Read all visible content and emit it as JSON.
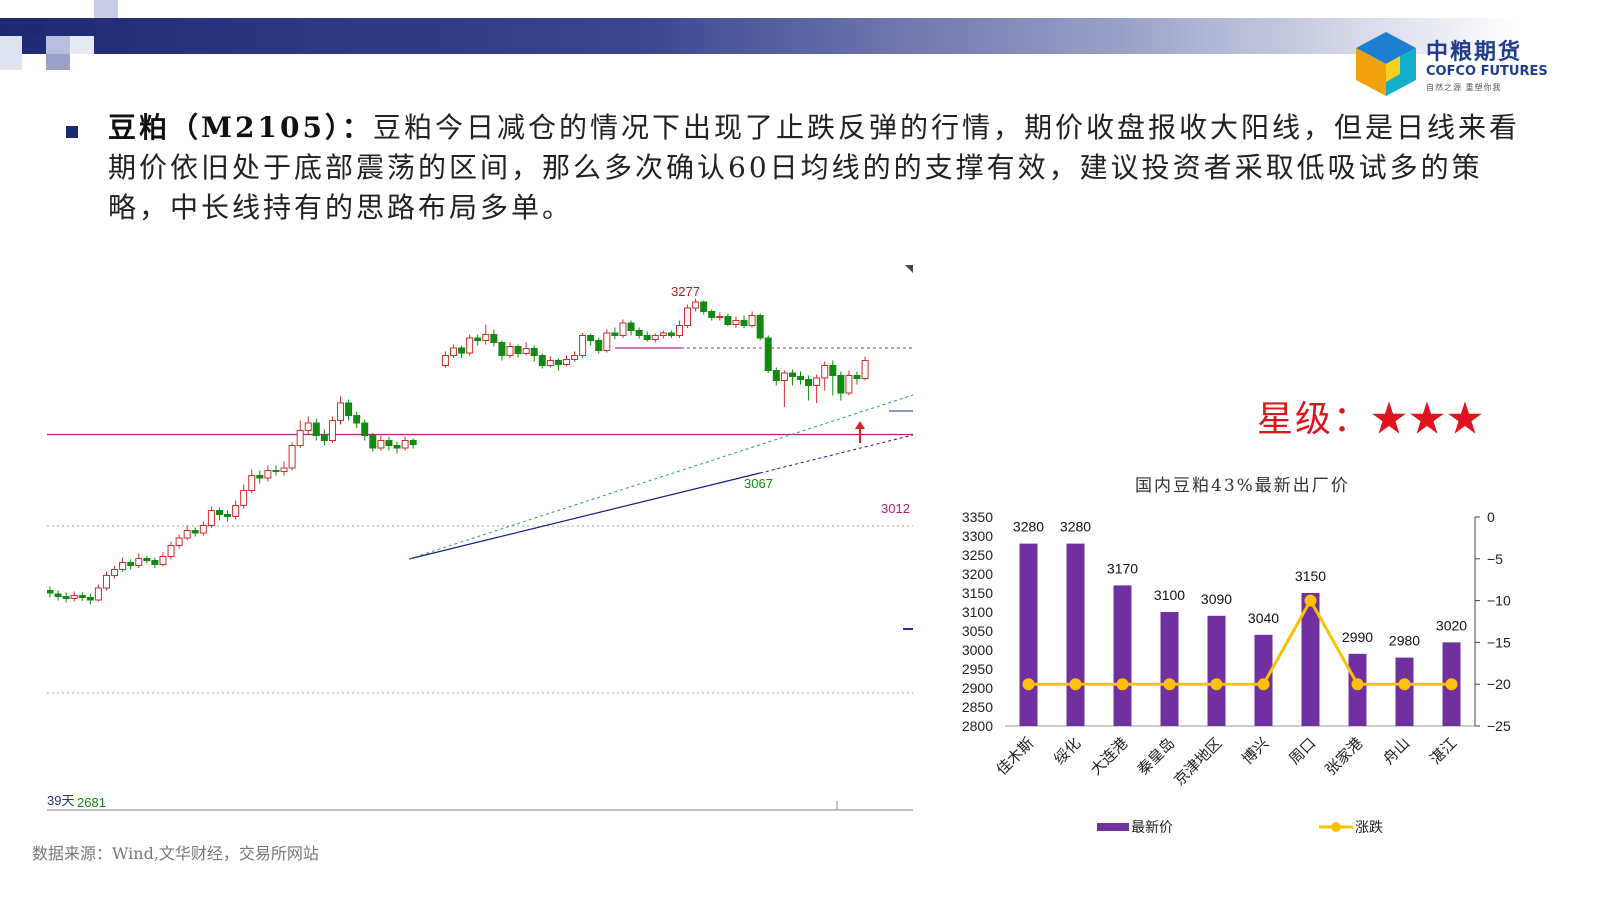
{
  "header": {
    "logo_cn": "中粮期货",
    "logo_en": "COFCO FUTURES",
    "logo_sub": "自然之源 重塑你我"
  },
  "commentary": {
    "lead": "豆粕（M2105）：",
    "body": "豆粕今日减仓的情况下出现了止跌反弹的行情，期价收盘报收大阳线，但是日线来看期价依旧处于底部震荡的区间，那么多次确认60日均线的的支撑有效，建议投资者采取低吸试多的策略，中长线持有的思路布局多单。"
  },
  "rating": {
    "label": "星级：",
    "stars": "★★★"
  },
  "source": "数据来源：Wind,文华财经，交易所网站",
  "colors": {
    "up": "#d62b2b",
    "down": "#108a10",
    "bar": "#7030a0",
    "line": "#ffc000",
    "hline": "#b0207a"
  },
  "chart_data": [
    {
      "type": "candlestick",
      "annotations": {
        "high_label": "3277",
        "low_label": "3067",
        "level_label": "3012",
        "start_label": "2681",
        "period_label": "39天"
      },
      "candles": [
        [
          2700,
          2695,
          2708,
          2686
        ],
        [
          2693,
          2688,
          2700,
          2680
        ],
        [
          2688,
          2684,
          2696,
          2676
        ],
        [
          2684,
          2690,
          2698,
          2678
        ],
        [
          2690,
          2686,
          2697,
          2679
        ],
        [
          2686,
          2681,
          2694,
          2672
        ],
        [
          2681,
          2705,
          2712,
          2678
        ],
        [
          2705,
          2730,
          2738,
          2700
        ],
        [
          2730,
          2742,
          2750,
          2724
        ],
        [
          2742,
          2756,
          2766,
          2737
        ],
        [
          2756,
          2750,
          2762,
          2742
        ],
        [
          2750,
          2764,
          2774,
          2745
        ],
        [
          2764,
          2760,
          2769,
          2754
        ],
        [
          2760,
          2752,
          2766,
          2745
        ],
        [
          2752,
          2768,
          2777,
          2748
        ],
        [
          2768,
          2790,
          2798,
          2762
        ],
        [
          2790,
          2805,
          2812,
          2784
        ],
        [
          2805,
          2820,
          2830,
          2800
        ],
        [
          2820,
          2815,
          2826,
          2808
        ],
        [
          2815,
          2830,
          2838,
          2810
        ],
        [
          2830,
          2860,
          2868,
          2825
        ],
        [
          2860,
          2852,
          2866,
          2840
        ],
        [
          2852,
          2848,
          2860,
          2838
        ],
        [
          2848,
          2870,
          2880,
          2842
        ],
        [
          2870,
          2900,
          2912,
          2864
        ],
        [
          2900,
          2930,
          2942,
          2895
        ],
        [
          2930,
          2925,
          2940,
          2914
        ],
        [
          2925,
          2940,
          2950,
          2918
        ],
        [
          2940,
          2938,
          2950,
          2930
        ],
        [
          2938,
          2945,
          2958,
          2930
        ],
        [
          2945,
          2990,
          2996,
          2940
        ],
        [
          2990,
          3020,
          3040,
          2985
        ],
        [
          3020,
          3035,
          3048,
          3012
        ],
        [
          3035,
          3010,
          3044,
          3000
        ],
        [
          3010,
          3000,
          3022,
          2990
        ],
        [
          3000,
          3040,
          3048,
          2995
        ],
        [
          3040,
          3075,
          3088,
          3032
        ],
        [
          3075,
          3050,
          3082,
          3040
        ],
        [
          3050,
          3035,
          3058,
          3025
        ],
        [
          3035,
          3010,
          3042,
          3000
        ],
        [
          3010,
          2985,
          3015,
          2978
        ],
        [
          2985,
          3000,
          3010,
          2980
        ],
        [
          3000,
          2990,
          3008,
          2980
        ],
        [
          2990,
          2985,
          2998,
          2974
        ],
        [
          2985,
          3000,
          3008,
          2980
        ],
        [
          3000,
          2992,
          3004,
          2984
        ],
        [
          3150,
          3170,
          3178,
          3145
        ],
        [
          3170,
          3185,
          3192,
          3165
        ],
        [
          3185,
          3175,
          3190,
          3165
        ],
        [
          3175,
          3205,
          3212,
          3170
        ],
        [
          3205,
          3200,
          3212,
          3190
        ],
        [
          3200,
          3212,
          3232,
          3192
        ],
        [
          3212,
          3196,
          3222,
          3188
        ],
        [
          3196,
          3170,
          3200,
          3160
        ],
        [
          3170,
          3188,
          3196,
          3165
        ],
        [
          3188,
          3174,
          3192,
          3166
        ],
        [
          3174,
          3184,
          3196,
          3170
        ],
        [
          3184,
          3170,
          3190,
          3158
        ],
        [
          3170,
          3150,
          3174,
          3144
        ],
        [
          3150,
          3160,
          3168,
          3146
        ],
        [
          3160,
          3152,
          3164,
          3140
        ],
        [
          3152,
          3162,
          3170,
          3148
        ],
        [
          3162,
          3170,
          3178,
          3158
        ],
        [
          3170,
          3210,
          3215,
          3165
        ],
        [
          3210,
          3200,
          3214,
          3190
        ],
        [
          3200,
          3180,
          3206,
          3174
        ],
        [
          3180,
          3215,
          3222,
          3176
        ],
        [
          3215,
          3210,
          3226,
          3202
        ],
        [
          3210,
          3235,
          3242,
          3205
        ],
        [
          3235,
          3220,
          3240,
          3210
        ],
        [
          3220,
          3210,
          3226,
          3204
        ],
        [
          3210,
          3202,
          3218,
          3198
        ],
        [
          3202,
          3210,
          3214,
          3196
        ],
        [
          3210,
          3215,
          3220,
          3204
        ],
        [
          3215,
          3210,
          3220,
          3205
        ],
        [
          3210,
          3230,
          3240,
          3205
        ],
        [
          3230,
          3265,
          3272,
          3225
        ],
        [
          3265,
          3277,
          3284,
          3258
        ],
        [
          3277,
          3258,
          3280,
          3252
        ],
        [
          3258,
          3246,
          3262,
          3240
        ],
        [
          3246,
          3248,
          3256,
          3240
        ],
        [
          3248,
          3232,
          3254,
          3228
        ],
        [
          3232,
          3240,
          3248,
          3226
        ],
        [
          3240,
          3230,
          3250,
          3225
        ],
        [
          3230,
          3250,
          3258,
          3226
        ],
        [
          3250,
          3205,
          3254,
          3200
        ],
        [
          3205,
          3140,
          3210,
          3135
        ],
        [
          3140,
          3120,
          3146,
          3110
        ],
        [
          3120,
          3135,
          3140,
          3067
        ],
        [
          3135,
          3128,
          3142,
          3110
        ],
        [
          3128,
          3122,
          3138,
          3112
        ],
        [
          3122,
          3110,
          3130,
          3080
        ],
        [
          3110,
          3125,
          3132,
          3075
        ],
        [
          3125,
          3150,
          3158,
          3100
        ],
        [
          3150,
          3130,
          3160,
          3090
        ],
        [
          3130,
          3095,
          3138,
          3080
        ],
        [
          3095,
          3130,
          3140,
          3090
        ],
        [
          3130,
          3124,
          3138,
          3112
        ],
        [
          3124,
          3160,
          3168,
          3120
        ]
      ]
    },
    {
      "type": "bar",
      "title": "国内豆粕43%最新出厂价",
      "categories": [
        "佳木斯",
        "绥化",
        "大连港",
        "秦皇岛",
        "京津地区",
        "博兴",
        "周口",
        "张家港",
        "舟山",
        "湛江"
      ],
      "series": [
        {
          "name": "最新价",
          "type": "bar",
          "axis": "left",
          "values": [
            3280,
            3280,
            3170,
            3100,
            3090,
            3040,
            3150,
            2990,
            2980,
            3020
          ]
        },
        {
          "name": "涨跌",
          "type": "line",
          "axis": "right",
          "values": [
            -20,
            -20,
            -20,
            -20,
            -20,
            -20,
            -10,
            -20,
            -20,
            -20
          ]
        }
      ],
      "ylim_left": [
        2800,
        3350
      ],
      "ylim_right": [
        -25,
        0
      ],
      "yticks_left": [
        2800,
        2850,
        2900,
        2950,
        3000,
        3050,
        3100,
        3150,
        3200,
        3250,
        3300,
        3350
      ],
      "yticks_right": [
        0,
        -5,
        -10,
        -15,
        -20,
        -25
      ],
      "legend": "bottom"
    }
  ]
}
